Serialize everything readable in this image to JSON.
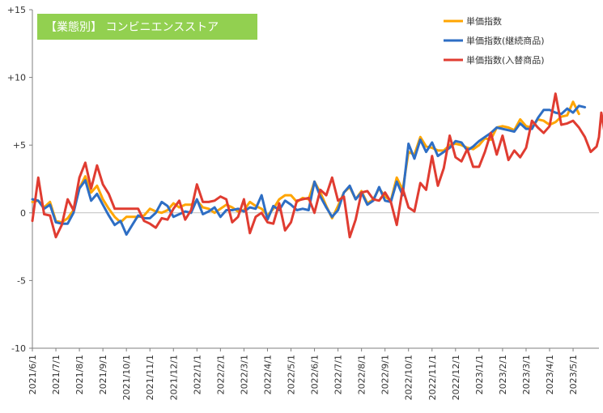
{
  "chart_data": {
    "type": "line",
    "title": "【業態別】 コンビニエンスストア",
    "ylim": [
      -10,
      15
    ],
    "yticks": [
      15,
      10,
      5,
      0,
      -5,
      -10
    ],
    "ytick_labels": [
      "+15",
      "+10",
      "+5",
      "0",
      "-5",
      "-10"
    ],
    "xtick_labels": [
      "2021/6/1",
      "2021/7/1",
      "2021/8/1",
      "2021/9/1",
      "2021/10/1",
      "2021/11/1",
      "2021/12/1",
      "2022/1/1",
      "2022/2/1",
      "2022/3/1",
      "2022/4/1",
      "2022/5/1",
      "2022/6/1",
      "2022/7/1",
      "2022/8/1",
      "2022/9/1",
      "2022/10/1",
      "2022/11/1",
      "2022/12/1",
      "2023/1/1",
      "2023/2/1",
      "2023/3/1",
      "2023/4/1",
      "2023/5/1"
    ],
    "x_range_months": [
      0,
      24.1
    ],
    "grid": {
      "horizontal": false,
      "vertical": false
    },
    "legend_position": "top-right",
    "title_box_color": "#92d050",
    "series": [
      {
        "name": "単価指数",
        "color": "#ffa500",
        "points": [
          [
            0,
            0.8
          ],
          [
            0.25,
            0.9
          ],
          [
            0.5,
            0.4
          ],
          [
            0.75,
            0.8
          ],
          [
            1,
            -0.6
          ],
          [
            1.25,
            -0.7
          ],
          [
            1.5,
            -0.4
          ],
          [
            1.75,
            0.2
          ],
          [
            2,
            1.8
          ],
          [
            2.25,
            2.7
          ],
          [
            2.5,
            1.5
          ],
          [
            2.75,
            2.0
          ],
          [
            3,
            1.0
          ],
          [
            3.25,
            0.3
          ],
          [
            3.5,
            -0.3
          ],
          [
            3.75,
            -0.7
          ],
          [
            4,
            -0.3
          ],
          [
            4.25,
            -0.3
          ],
          [
            4.5,
            -0.3
          ],
          [
            4.75,
            -0.2
          ],
          [
            5,
            0.3
          ],
          [
            5.25,
            0.1
          ],
          [
            5.5,
            0.0
          ],
          [
            5.75,
            0.2
          ],
          [
            6,
            0.7
          ],
          [
            6.25,
            0.4
          ],
          [
            6.5,
            0.6
          ],
          [
            6.75,
            0.6
          ],
          [
            7,
            0.9
          ],
          [
            7.25,
            0.4
          ],
          [
            7.5,
            0.3
          ],
          [
            7.75,
            0.0
          ],
          [
            8,
            0.3
          ],
          [
            8.25,
            0.6
          ],
          [
            8.5,
            0.4
          ],
          [
            8.75,
            0.1
          ],
          [
            9,
            0.2
          ],
          [
            9.25,
            0.8
          ],
          [
            9.5,
            0.5
          ],
          [
            9.75,
            0.3
          ],
          [
            10,
            -0.2
          ],
          [
            10.25,
            0.3
          ],
          [
            10.5,
            1.0
          ],
          [
            10.75,
            1.3
          ],
          [
            11,
            1.3
          ],
          [
            11.25,
            0.8
          ],
          [
            11.5,
            1.1
          ],
          [
            11.75,
            1.0
          ],
          [
            12,
            2.3
          ],
          [
            12.25,
            1.5
          ],
          [
            12.5,
            0.5
          ],
          [
            12.75,
            -0.4
          ],
          [
            13,
            0.5
          ],
          [
            13.25,
            1.5
          ],
          [
            13.5,
            1.9
          ],
          [
            13.75,
            1.0
          ],
          [
            14,
            1.6
          ],
          [
            14.25,
            0.7
          ],
          [
            14.5,
            1.0
          ],
          [
            14.75,
            1.8
          ],
          [
            15,
            1.2
          ],
          [
            15.25,
            0.9
          ],
          [
            15.5,
            2.6
          ],
          [
            15.75,
            1.7
          ],
          [
            16,
            4.5
          ],
          [
            16.25,
            4.3
          ],
          [
            16.5,
            5.6
          ],
          [
            16.75,
            4.9
          ],
          [
            17,
            4.8
          ],
          [
            17.25,
            4.6
          ],
          [
            17.5,
            4.6
          ],
          [
            17.75,
            5.0
          ],
          [
            18,
            5.1
          ],
          [
            18.25,
            5.0
          ],
          [
            18.5,
            4.8
          ],
          [
            18.75,
            4.7
          ],
          [
            19,
            5.0
          ],
          [
            19.25,
            5.5
          ],
          [
            19.5,
            5.4
          ],
          [
            19.75,
            6.3
          ],
          [
            20,
            6.4
          ],
          [
            20.25,
            6.3
          ],
          [
            20.5,
            6.1
          ],
          [
            20.75,
            6.9
          ],
          [
            21,
            6.4
          ],
          [
            21.25,
            6.3
          ],
          [
            21.5,
            6.9
          ],
          [
            21.75,
            6.8
          ],
          [
            22,
            6.5
          ],
          [
            22.25,
            6.7
          ],
          [
            22.5,
            7.1
          ],
          [
            22.75,
            7.2
          ],
          [
            23,
            8.2
          ],
          [
            23.25,
            7.3
          ]
        ]
      },
      {
        "name": "単価指数(継続商品)",
        "color": "#2e6ec4",
        "points": [
          [
            0,
            1.0
          ],
          [
            0.25,
            0.9
          ],
          [
            0.5,
            0.3
          ],
          [
            0.75,
            0.6
          ],
          [
            1,
            -0.7
          ],
          [
            1.25,
            -0.8
          ],
          [
            1.5,
            -0.8
          ],
          [
            1.75,
            0.0
          ],
          [
            2,
            1.8
          ],
          [
            2.25,
            2.4
          ],
          [
            2.5,
            0.9
          ],
          [
            2.75,
            1.4
          ],
          [
            3,
            0.6
          ],
          [
            3.25,
            -0.2
          ],
          [
            3.5,
            -0.9
          ],
          [
            3.75,
            -0.6
          ],
          [
            4,
            -1.6
          ],
          [
            4.25,
            -0.9
          ],
          [
            4.5,
            -0.2
          ],
          [
            4.75,
            -0.4
          ],
          [
            5,
            -0.4
          ],
          [
            5.25,
            0.0
          ],
          [
            5.5,
            0.8
          ],
          [
            5.75,
            0.5
          ],
          [
            6,
            -0.3
          ],
          [
            6.25,
            -0.1
          ],
          [
            6.5,
            0.1
          ],
          [
            6.75,
            0.0
          ],
          [
            7,
            1.0
          ],
          [
            7.25,
            -0.1
          ],
          [
            7.5,
            0.1
          ],
          [
            7.75,
            0.4
          ],
          [
            8,
            -0.3
          ],
          [
            8.25,
            0.2
          ],
          [
            8.5,
            0.2
          ],
          [
            8.75,
            0.3
          ],
          [
            9,
            0.1
          ],
          [
            9.25,
            0.4
          ],
          [
            9.5,
            0.3
          ],
          [
            9.75,
            1.3
          ],
          [
            10,
            -0.5
          ],
          [
            10.25,
            0.5
          ],
          [
            10.5,
            0.2
          ],
          [
            10.75,
            0.9
          ],
          [
            11,
            0.6
          ],
          [
            11.25,
            0.2
          ],
          [
            11.5,
            0.3
          ],
          [
            11.75,
            0.2
          ],
          [
            12,
            2.3
          ],
          [
            12.25,
            1.2
          ],
          [
            12.5,
            0.4
          ],
          [
            12.75,
            -0.3
          ],
          [
            13,
            0.2
          ],
          [
            13.25,
            1.5
          ],
          [
            13.5,
            2.0
          ],
          [
            13.75,
            1.0
          ],
          [
            14,
            1.5
          ],
          [
            14.25,
            0.6
          ],
          [
            14.5,
            0.9
          ],
          [
            14.75,
            1.9
          ],
          [
            15,
            0.9
          ],
          [
            15.25,
            0.8
          ],
          [
            15.5,
            2.3
          ],
          [
            15.75,
            1.3
          ],
          [
            16,
            5.1
          ],
          [
            16.25,
            4.0
          ],
          [
            16.5,
            5.4
          ],
          [
            16.75,
            4.5
          ],
          [
            17,
            5.2
          ],
          [
            17.25,
            4.2
          ],
          [
            17.5,
            4.5
          ],
          [
            17.75,
            4.8
          ],
          [
            18,
            5.3
          ],
          [
            18.25,
            5.2
          ],
          [
            18.5,
            4.6
          ],
          [
            18.75,
            4.9
          ],
          [
            19,
            5.3
          ],
          [
            19.25,
            5.6
          ],
          [
            19.5,
            5.9
          ],
          [
            19.75,
            6.3
          ],
          [
            20,
            6.2
          ],
          [
            20.25,
            6.1
          ],
          [
            20.5,
            6.0
          ],
          [
            20.75,
            6.6
          ],
          [
            21,
            6.2
          ],
          [
            21.25,
            6.2
          ],
          [
            21.5,
            7.0
          ],
          [
            21.75,
            7.6
          ],
          [
            22,
            7.6
          ],
          [
            22.25,
            7.4
          ],
          [
            22.5,
            7.3
          ],
          [
            22.75,
            7.7
          ],
          [
            23,
            7.4
          ],
          [
            23.25,
            7.9
          ],
          [
            23.5,
            7.8
          ]
        ]
      },
      {
        "name": "単価指数(入替商品)",
        "color": "#e03c31",
        "points": [
          [
            0,
            -0.6
          ],
          [
            0.25,
            2.6
          ],
          [
            0.5,
            -0.1
          ],
          [
            0.75,
            -0.2
          ],
          [
            1,
            -1.8
          ],
          [
            1.25,
            -0.9
          ],
          [
            1.5,
            1.0
          ],
          [
            1.75,
            0.2
          ],
          [
            2,
            2.6
          ],
          [
            2.25,
            3.7
          ],
          [
            2.5,
            1.8
          ],
          [
            2.75,
            3.5
          ],
          [
            3,
            2.1
          ],
          [
            3.25,
            1.4
          ],
          [
            3.5,
            0.3
          ],
          [
            3.75,
            0.3
          ],
          [
            4,
            0.3
          ],
          [
            4.25,
            0.3
          ],
          [
            4.5,
            0.3
          ],
          [
            4.75,
            -0.6
          ],
          [
            5,
            -0.8
          ],
          [
            5.25,
            -1.1
          ],
          [
            5.5,
            -0.4
          ],
          [
            5.75,
            -0.5
          ],
          [
            6,
            0.3
          ],
          [
            6.25,
            0.9
          ],
          [
            6.5,
            -0.5
          ],
          [
            6.75,
            0.2
          ],
          [
            7,
            2.1
          ],
          [
            7.25,
            0.8
          ],
          [
            7.5,
            0.8
          ],
          [
            7.75,
            0.9
          ],
          [
            8,
            1.2
          ],
          [
            8.25,
            1.0
          ],
          [
            8.5,
            -0.7
          ],
          [
            8.75,
            -0.3
          ],
          [
            9,
            1.0
          ],
          [
            9.25,
            -1.5
          ],
          [
            9.5,
            -0.3
          ],
          [
            9.75,
            0.0
          ],
          [
            10,
            -0.7
          ],
          [
            10.25,
            -0.8
          ],
          [
            10.5,
            0.7
          ],
          [
            10.75,
            -1.3
          ],
          [
            11,
            -0.7
          ],
          [
            11.25,
            0.9
          ],
          [
            11.5,
            1.0
          ],
          [
            11.75,
            1.1
          ],
          [
            12,
            0.0
          ],
          [
            12.25,
            1.7
          ],
          [
            12.5,
            1.3
          ],
          [
            12.75,
            2.6
          ],
          [
            13,
            0.9
          ],
          [
            13.25,
            1.2
          ],
          [
            13.5,
            -1.8
          ],
          [
            13.75,
            -0.5
          ],
          [
            14,
            1.5
          ],
          [
            14.25,
            1.6
          ],
          [
            14.5,
            1.0
          ],
          [
            14.75,
            0.9
          ],
          [
            15,
            1.5
          ],
          [
            15.25,
            0.8
          ],
          [
            15.5,
            -0.9
          ],
          [
            15.75,
            1.8
          ],
          [
            16,
            0.4
          ],
          [
            16.25,
            0.1
          ],
          [
            16.5,
            2.2
          ],
          [
            16.75,
            1.7
          ],
          [
            17,
            4.2
          ],
          [
            17.25,
            2.0
          ],
          [
            17.5,
            3.3
          ],
          [
            17.75,
            5.7
          ],
          [
            18,
            4.1
          ],
          [
            18.25,
            3.8
          ],
          [
            18.5,
            4.7
          ],
          [
            18.75,
            3.4
          ],
          [
            19,
            3.4
          ],
          [
            19.25,
            4.5
          ],
          [
            19.5,
            5.9
          ],
          [
            19.75,
            4.3
          ],
          [
            20,
            5.7
          ],
          [
            20.25,
            3.9
          ],
          [
            20.5,
            4.6
          ],
          [
            20.75,
            4.1
          ],
          [
            21,
            4.8
          ],
          [
            21.25,
            6.8
          ],
          [
            21.5,
            6.3
          ],
          [
            21.75,
            5.9
          ],
          [
            22,
            6.4
          ],
          [
            22.25,
            8.8
          ],
          [
            22.5,
            6.5
          ],
          [
            22.75,
            6.6
          ],
          [
            23,
            6.8
          ],
          [
            23.25,
            6.3
          ],
          [
            23.5,
            5.6
          ],
          [
            23.75,
            4.5
          ],
          [
            24,
            4.9
          ],
          [
            24.1,
            5.6
          ],
          [
            24.2,
            7.4
          ],
          [
            24.35,
            5.8
          ]
        ]
      }
    ]
  }
}
